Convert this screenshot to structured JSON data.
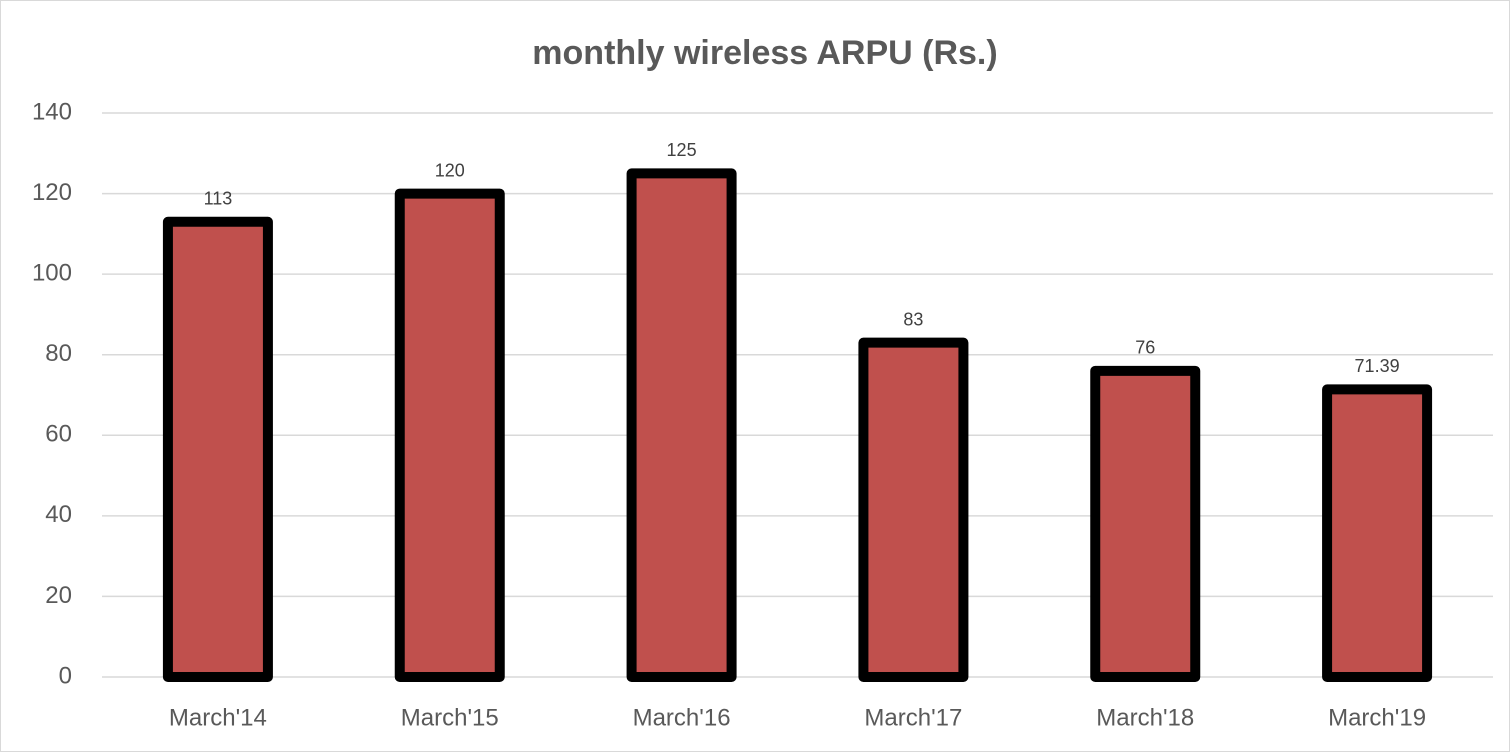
{
  "chart_data": {
    "type": "bar",
    "title": "monthly wireless ARPU (Rs.)",
    "categories": [
      "March'14",
      "March'15",
      "March'16",
      "March'17",
      "March'18",
      "March'19"
    ],
    "values": [
      113,
      120,
      125,
      83,
      76,
      71.39
    ],
    "color": "#c0504d",
    "edge_color": "#000000",
    "ylim": [
      0,
      140
    ],
    "yticks": [
      0,
      20,
      40,
      60,
      80,
      100,
      120,
      140
    ],
    "grid": true
  }
}
